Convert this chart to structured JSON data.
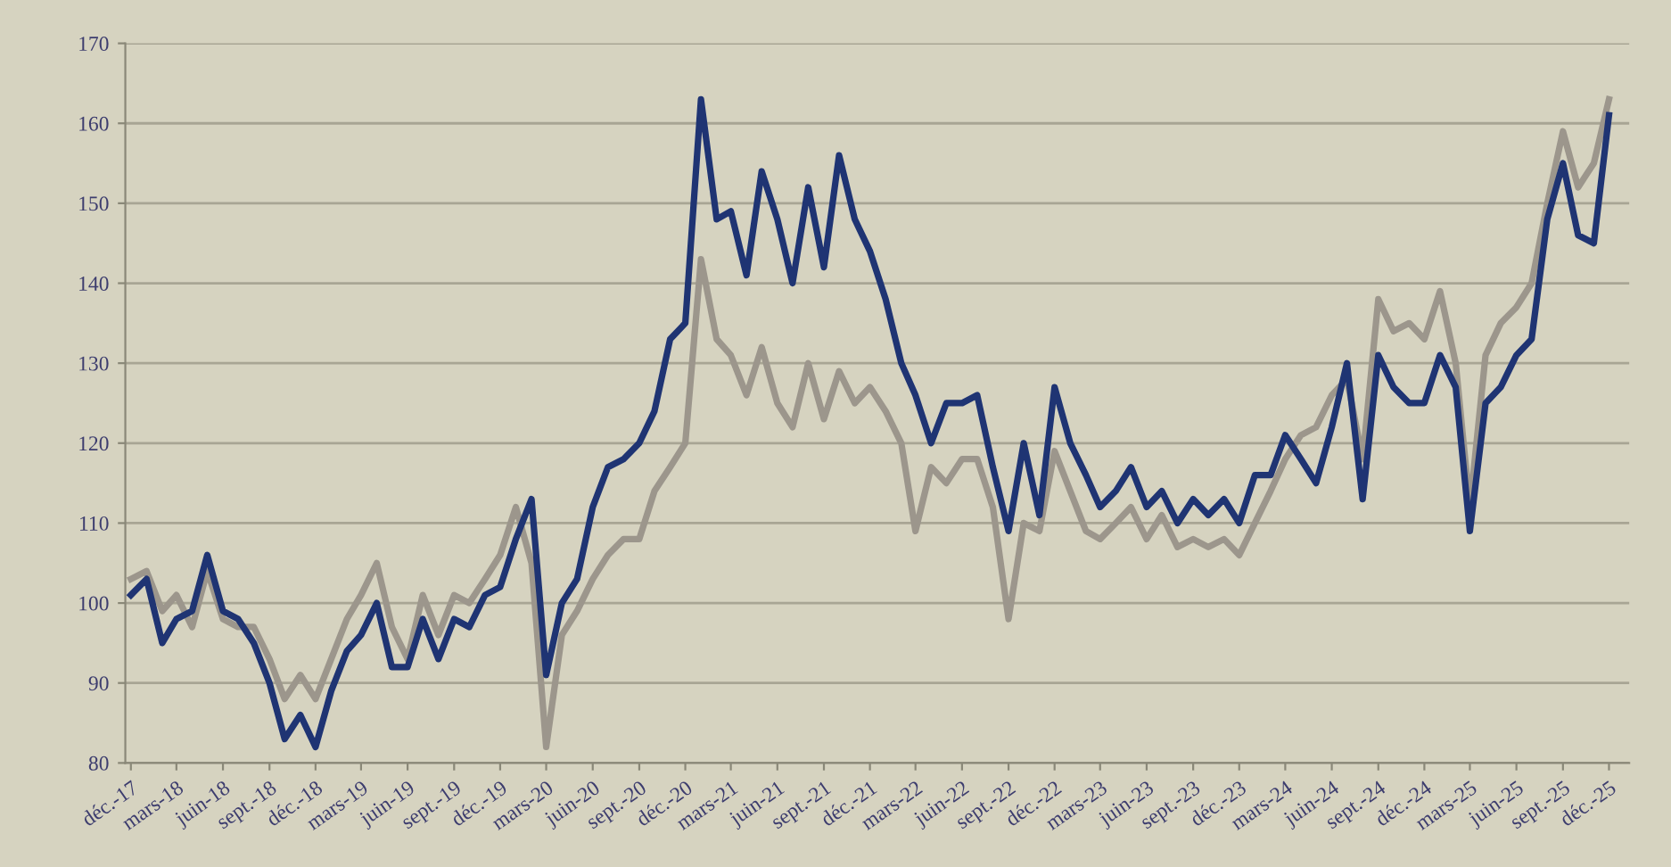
{
  "chart_data": {
    "type": "line",
    "x": [
      "2017-12",
      "2018-01",
      "2018-02",
      "2018-03",
      "2018-04",
      "2018-05",
      "2018-06",
      "2018-07",
      "2018-08",
      "2018-09",
      "2018-10",
      "2018-11",
      "2018-12",
      "2019-01",
      "2019-02",
      "2019-03",
      "2019-04",
      "2019-05",
      "2019-06",
      "2019-07",
      "2019-08",
      "2019-09",
      "2019-10",
      "2019-11",
      "2019-12",
      "2020-01",
      "2020-02",
      "2020-03",
      "2020-04",
      "2020-05",
      "2020-06",
      "2020-07",
      "2020-08",
      "2020-09",
      "2020-10",
      "2020-11",
      "2020-12",
      "2021-01",
      "2021-02",
      "2021-03",
      "2021-04",
      "2021-05",
      "2021-06",
      "2021-07",
      "2021-08",
      "2021-09",
      "2021-10",
      "2021-11",
      "2021-12",
      "2022-01",
      "2022-02",
      "2022-03",
      "2022-04",
      "2022-05",
      "2022-06",
      "2022-07",
      "2022-08",
      "2022-09",
      "2022-10",
      "2022-11",
      "2022-12",
      "2023-01",
      "2023-02",
      "2023-03",
      "2023-04",
      "2023-05",
      "2023-06",
      "2023-07",
      "2023-08",
      "2023-09",
      "2023-10",
      "2023-11",
      "2023-12",
      "2024-01",
      "2024-02",
      "2024-03",
      "2024-04",
      "2024-05",
      "2024-06",
      "2024-07",
      "2024-08",
      "2024-09",
      "2024-10",
      "2024-11",
      "2024-12",
      "2025-01",
      "2025-02",
      "2025-03",
      "2025-04",
      "2025-05",
      "2025-06",
      "2025-07",
      "2025-08",
      "2025-09",
      "2025-10",
      "2025-11",
      "2025-12"
    ],
    "series": [
      {
        "color": "#9c968c",
        "values": [
          103,
          104,
          99,
          101,
          97,
          104,
          98,
          97,
          97,
          93,
          88,
          91,
          88,
          93,
          98,
          101,
          105,
          97,
          93,
          101,
          96,
          101,
          100,
          103,
          106,
          112,
          105,
          82,
          96,
          99,
          103,
          106,
          108,
          108,
          114,
          117,
          120,
          143,
          133,
          131,
          126,
          132,
          125,
          122,
          130,
          123,
          129,
          125,
          127,
          124,
          120,
          109,
          117,
          115,
          118,
          118,
          112,
          98,
          110,
          109,
          119,
          114,
          109,
          108,
          110,
          112,
          108,
          111,
          107,
          108,
          107,
          108,
          106,
          110,
          114,
          118,
          121,
          122,
          126,
          128,
          118,
          138,
          134,
          135,
          133,
          139,
          130,
          112,
          131,
          135,
          137,
          140,
          150,
          159,
          152,
          155,
          163
        ]
      },
      {
        "color": "#1f3473",
        "values": [
          101,
          103,
          95,
          98,
          99,
          106,
          99,
          98,
          95,
          90,
          83,
          86,
          82,
          89,
          94,
          96,
          100,
          92,
          92,
          98,
          93,
          98,
          97,
          101,
          102,
          108,
          113,
          91,
          100,
          103,
          112,
          117,
          118,
          120,
          124,
          133,
          135,
          163,
          148,
          149,
          141,
          154,
          148,
          140,
          152,
          142,
          156,
          148,
          144,
          138,
          130,
          126,
          120,
          125,
          125,
          126,
          117,
          109,
          120,
          111,
          127,
          120,
          116,
          112,
          114,
          117,
          112,
          114,
          110,
          113,
          111,
          113,
          110,
          116,
          116,
          121,
          118,
          115,
          122,
          130,
          113,
          131,
          127,
          125,
          125,
          131,
          127,
          109,
          125,
          127,
          131,
          133,
          148,
          155,
          146,
          145,
          161
        ]
      }
    ],
    "xlim": [
      "2017-11-20",
      "2026-01-10"
    ],
    "xticks": [
      {
        "value": "2017-12",
        "label": "déc.-17"
      },
      {
        "value": "2018-03",
        "label": "mars-18"
      },
      {
        "value": "2018-06",
        "label": "juin-18"
      },
      {
        "value": "2018-09",
        "label": "sept.-18"
      },
      {
        "value": "2018-12",
        "label": "déc.-18"
      },
      {
        "value": "2019-03",
        "label": "mars-19"
      },
      {
        "value": "2019-06",
        "label": "juin-19"
      },
      {
        "value": "2019-09",
        "label": "sept.-19"
      },
      {
        "value": "2019-12",
        "label": "déc.-19"
      },
      {
        "value": "2020-03",
        "label": "mars-20"
      },
      {
        "value": "2020-06",
        "label": "juin-20"
      },
      {
        "value": "2020-09",
        "label": "sept.-20"
      },
      {
        "value": "2020-12",
        "label": "déc.-20"
      },
      {
        "value": "2021-03",
        "label": "mars-21"
      },
      {
        "value": "2021-06",
        "label": "juin-21"
      },
      {
        "value": "2021-09",
        "label": "sept.-21"
      },
      {
        "value": "2021-12",
        "label": "déc.-21"
      },
      {
        "value": "2022-03",
        "label": "mars-22"
      },
      {
        "value": "2022-06",
        "label": "juin-22"
      },
      {
        "value": "2022-09",
        "label": "sept.-22"
      },
      {
        "value": "2022-12",
        "label": "déc.-22"
      },
      {
        "value": "2023-03",
        "label": "mars-23"
      },
      {
        "value": "2023-06",
        "label": "juin-23"
      },
      {
        "value": "2023-09",
        "label": "sept.-23"
      },
      {
        "value": "2023-12",
        "label": "déc.-23"
      },
      {
        "value": "2024-03",
        "label": "mars-24"
      },
      {
        "value": "2024-06",
        "label": "juin-24"
      },
      {
        "value": "2024-09",
        "label": "sept.-24"
      },
      {
        "value": "2024-12",
        "label": "déc.-24"
      },
      {
        "value": "2025-03",
        "label": "mars-25"
      },
      {
        "value": "2025-06",
        "label": "juin-25"
      },
      {
        "value": "2025-09",
        "label": "sept.-25"
      },
      {
        "value": "2025-12",
        "label": "déc.-25"
      }
    ],
    "ylim": [
      80,
      170
    ],
    "yticks": [
      80,
      90,
      100,
      110,
      120,
      130,
      140,
      150,
      160,
      170
    ],
    "grid": "y",
    "marker": "none",
    "line_style": "solid"
  }
}
